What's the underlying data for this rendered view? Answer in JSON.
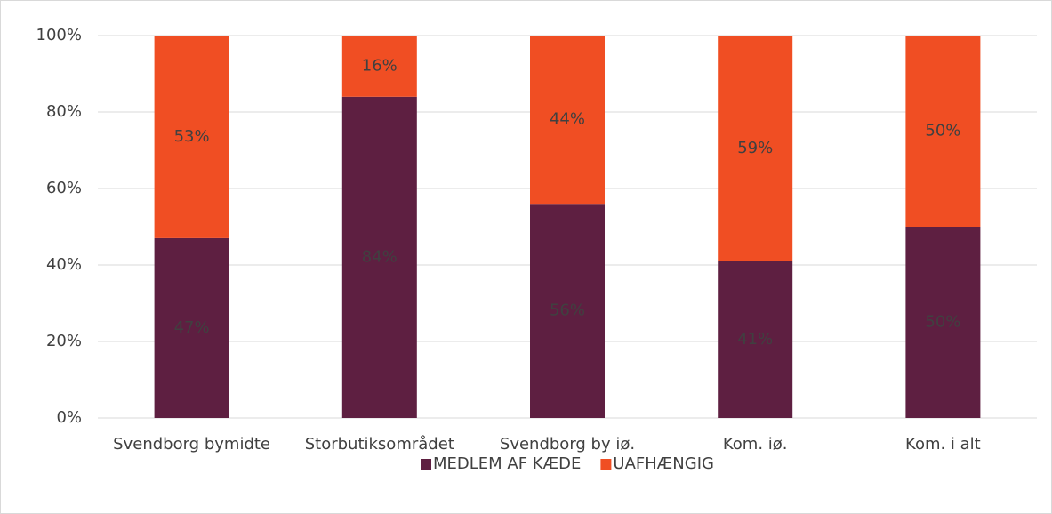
{
  "chart_data": {
    "type": "stacked_bar",
    "categories": [
      "Svendborg bymidte",
      "Storbutiksområdet",
      "Svendborg by iø.",
      "Kom. iø.",
      "Kom. i alt"
    ],
    "series": [
      {
        "name": "MEDLEM AF KÆDE",
        "color": "#5e1f41",
        "values": [
          47,
          84,
          56,
          41,
          50
        ],
        "value_labels": [
          "47%",
          "84%",
          "56%",
          "41%",
          "50%"
        ]
      },
      {
        "name": "UAFHÆNGIG",
        "color": "#f04e23",
        "values": [
          53,
          16,
          44,
          59,
          50
        ],
        "value_labels": [
          "53%",
          "16%",
          "44%",
          "59%",
          "50%"
        ]
      }
    ],
    "ylim": [
      0,
      100
    ],
    "yticks": [
      {
        "value": 0,
        "label": "0%"
      },
      {
        "value": 20,
        "label": "20%"
      },
      {
        "value": 40,
        "label": "40%"
      },
      {
        "value": 60,
        "label": "60%"
      },
      {
        "value": 80,
        "label": "80%"
      },
      {
        "value": 100,
        "label": "100%"
      }
    ],
    "grid": true,
    "legend": "bottom"
  }
}
